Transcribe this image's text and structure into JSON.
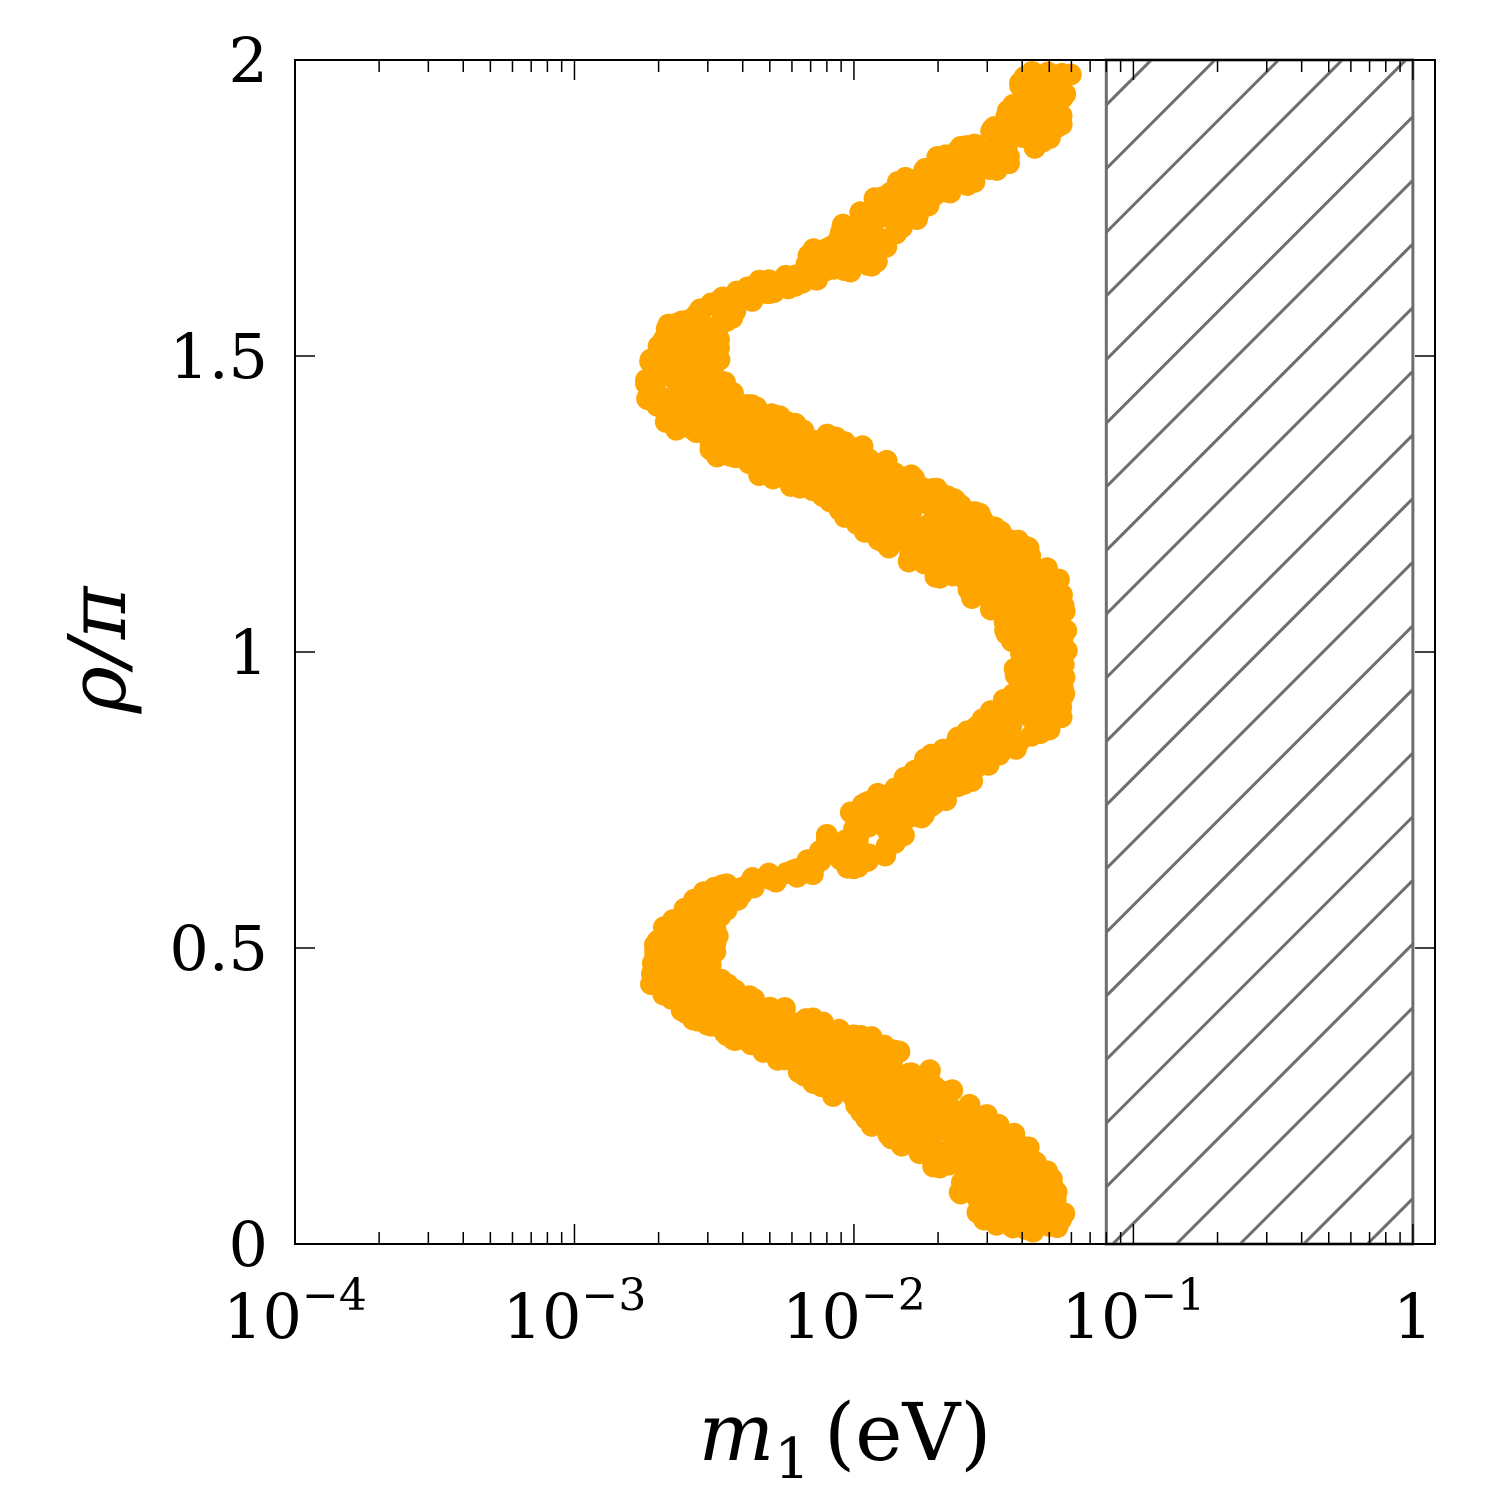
{
  "chart_data": {
    "type": "scatter",
    "title": "",
    "xlabel": {
      "symbol": "m",
      "sub": "1",
      "unit": "(eV)"
    },
    "ylabel": "ρ/π",
    "x_scale": "log",
    "xlim": [
      0.0001,
      1.2
    ],
    "ylim": [
      0,
      2
    ],
    "x_ticks": [
      {
        "value": 0.0001,
        "base": "10",
        "exp": "−4"
      },
      {
        "value": 0.001,
        "base": "10",
        "exp": "−3"
      },
      {
        "value": 0.01,
        "base": "10",
        "exp": "−2"
      },
      {
        "value": 0.1,
        "base": "10",
        "exp": "−1"
      },
      {
        "value": 1,
        "base": "1",
        "exp": ""
      }
    ],
    "y_ticks": [
      {
        "value": 0,
        "label": "0"
      },
      {
        "value": 0.5,
        "label": "0.5"
      },
      {
        "value": 1,
        "label": "1"
      },
      {
        "value": 1.5,
        "label": "1.5"
      },
      {
        "value": 2,
        "label": "2"
      }
    ],
    "grid": false,
    "excluded_region": {
      "x_from": 0.08,
      "x_to": 1.0,
      "style": "hatched",
      "color": "#6e6e6e"
    },
    "series": [
      {
        "color": "#ffa500",
        "envelope": [
          {
            "y": 0.02,
            "x_min": 0.031,
            "x_max": 0.058
          },
          {
            "y": 0.07,
            "x_min": 0.026,
            "x_max": 0.056
          },
          {
            "y": 0.12,
            "x_min": 0.02,
            "x_max": 0.05
          },
          {
            "y": 0.18,
            "x_min": 0.013,
            "x_max": 0.04
          },
          {
            "y": 0.24,
            "x_min": 0.009,
            "x_max": 0.026
          },
          {
            "y": 0.3,
            "x_min": 0.0058,
            "x_max": 0.018
          },
          {
            "y": 0.35,
            "x_min": 0.0035,
            "x_max": 0.012
          },
          {
            "y": 0.39,
            "x_min": 0.0024,
            "x_max": 0.0065
          },
          {
            "y": 0.43,
            "x_min": 0.0019,
            "x_max": 0.0038
          },
          {
            "y": 0.47,
            "x_min": 0.0018,
            "x_max": 0.0032
          },
          {
            "y": 0.51,
            "x_min": 0.0019,
            "x_max": 0.0033
          },
          {
            "y": 0.55,
            "x_min": 0.0022,
            "x_max": 0.0034
          },
          {
            "y": 0.6,
            "x_min": 0.003,
            "x_max": 0.0042
          },
          {
            "y": 0.64,
            "x_min": 0.0065,
            "x_max": 0.012
          },
          {
            "y": 0.7,
            "x_min": 0.008,
            "x_max": 0.016
          },
          {
            "y": 0.76,
            "x_min": 0.012,
            "x_max": 0.025
          },
          {
            "y": 0.82,
            "x_min": 0.018,
            "x_max": 0.034
          },
          {
            "y": 0.88,
            "x_min": 0.028,
            "x_max": 0.055
          },
          {
            "y": 0.94,
            "x_min": 0.037,
            "x_max": 0.058
          },
          {
            "y": 1.0,
            "x_min": 0.038,
            "x_max": 0.058
          },
          {
            "y": 1.05,
            "x_min": 0.033,
            "x_max": 0.06
          },
          {
            "y": 1.1,
            "x_min": 0.024,
            "x_max": 0.058
          },
          {
            "y": 1.15,
            "x_min": 0.016,
            "x_max": 0.05
          },
          {
            "y": 1.2,
            "x_min": 0.011,
            "x_max": 0.036
          },
          {
            "y": 1.25,
            "x_min": 0.008,
            "x_max": 0.025
          },
          {
            "y": 1.3,
            "x_min": 0.0045,
            "x_max": 0.016
          },
          {
            "y": 1.35,
            "x_min": 0.0026,
            "x_max": 0.011
          },
          {
            "y": 1.39,
            "x_min": 0.0021,
            "x_max": 0.006
          },
          {
            "y": 1.43,
            "x_min": 0.0018,
            "x_max": 0.0038
          },
          {
            "y": 1.47,
            "x_min": 0.0018,
            "x_max": 0.0033
          },
          {
            "y": 1.51,
            "x_min": 0.0019,
            "x_max": 0.0034
          },
          {
            "y": 1.55,
            "x_min": 0.0021,
            "x_max": 0.0034
          },
          {
            "y": 1.6,
            "x_min": 0.0032,
            "x_max": 0.0045
          },
          {
            "y": 1.65,
            "x_min": 0.006,
            "x_max": 0.012
          },
          {
            "y": 1.7,
            "x_min": 0.008,
            "x_max": 0.014
          },
          {
            "y": 1.76,
            "x_min": 0.011,
            "x_max": 0.02
          },
          {
            "y": 1.82,
            "x_min": 0.017,
            "x_max": 0.035
          },
          {
            "y": 1.88,
            "x_min": 0.03,
            "x_max": 0.055
          },
          {
            "y": 1.93,
            "x_min": 0.037,
            "x_max": 0.058
          },
          {
            "y": 1.98,
            "x_min": 0.04,
            "x_max": 0.06
          }
        ]
      }
    ]
  }
}
